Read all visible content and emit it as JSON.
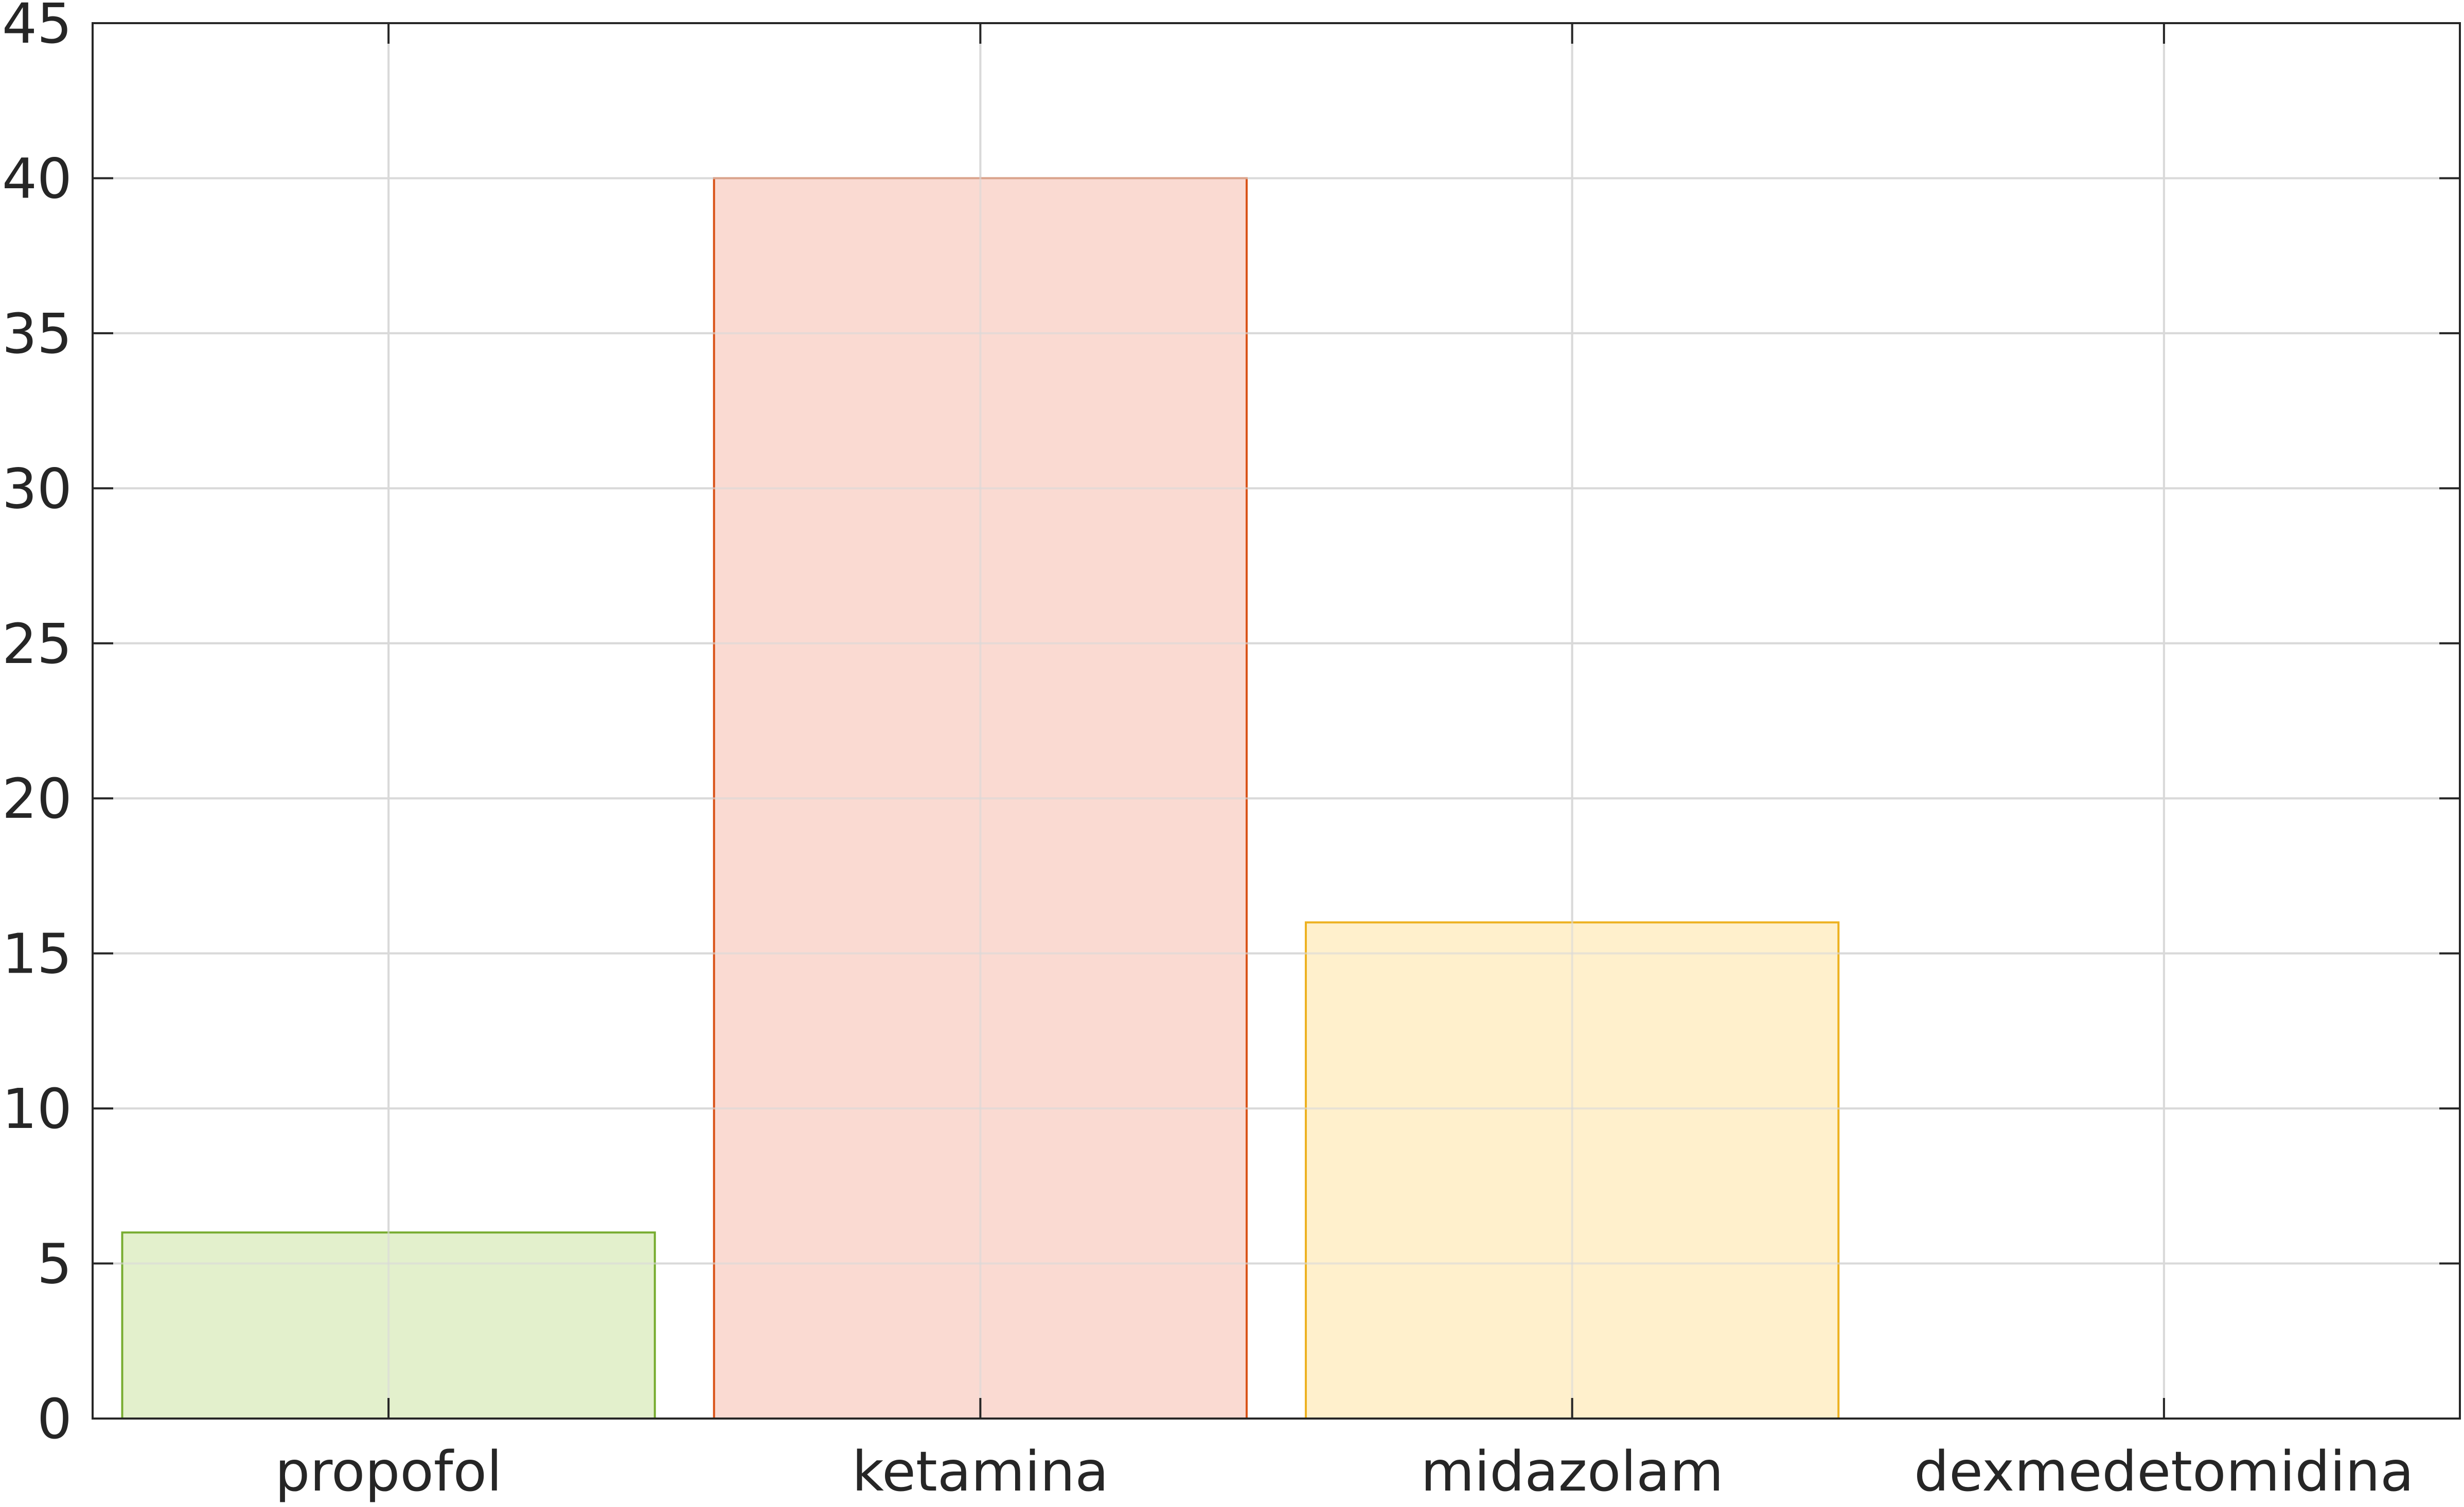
{
  "chart_data": {
    "type": "bar",
    "title": "",
    "xlabel": "",
    "ylabel": "",
    "categories": [
      "propofol",
      "ketamina",
      "midazolam",
      "dexmedetomidina"
    ],
    "values": [
      6,
      40,
      16,
      0
    ],
    "ylim": [
      0,
      45
    ],
    "yticks": [
      0,
      5,
      10,
      15,
      20,
      25,
      30,
      35,
      40,
      45
    ],
    "ytick_labels": [
      "0",
      "5",
      "10",
      "15",
      "20",
      "25",
      "30",
      "35",
      "40",
      "45"
    ],
    "grid": true,
    "bar_colors": [
      {
        "fill": "#e3f0cc",
        "stroke": "#77ac30"
      },
      {
        "fill": "#fadad2",
        "stroke": "#d95319"
      },
      {
        "fill": "#fff0cc",
        "stroke": "#edb120"
      },
      {
        "fill": "#dceaf5",
        "stroke": "#0072bd"
      }
    ],
    "colors": {
      "axis": "#262626",
      "grid": "#d9d9d9",
      "background": "#ffffff"
    }
  }
}
